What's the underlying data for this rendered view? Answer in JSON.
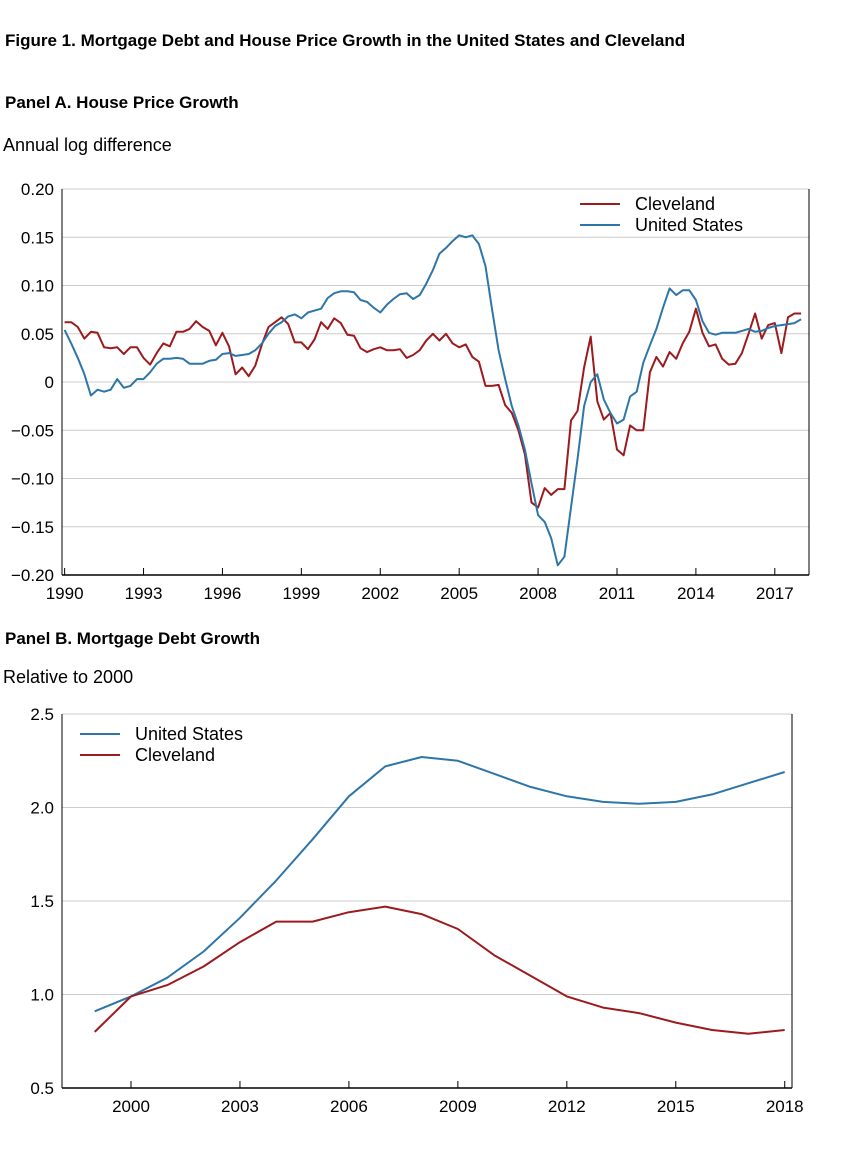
{
  "figure_title": "Figure 1. Mortgage Debt and House Price Growth in the United States and Cleveland",
  "panel_a": {
    "title": "Panel A. House Price Growth",
    "subtitle": "Annual log difference"
  },
  "panel_b": {
    "title": "Panel B. Mortgage Debt Growth",
    "subtitle": "Relative to 2000"
  },
  "colors": {
    "cleveland": "#9B1B1E",
    "united_states": "#2E76A8",
    "grid": "#CCCCCC",
    "axis": "#000000"
  },
  "chart_data": [
    {
      "type": "line",
      "title": "Panel A. House Price Growth",
      "ylabel": "Annual log difference",
      "xlim": [
        1990,
        2018
      ],
      "ylim": [
        -0.2,
        0.2
      ],
      "yticks": [
        0.2,
        0.15,
        0.1,
        0.05,
        0,
        -0.05,
        -0.1,
        -0.15,
        -0.2
      ],
      "ytick_labels": [
        "0.20",
        "0.15",
        "0.10",
        "0.05",
        "0",
        "−0.05",
        "−0.10",
        "−0.15",
        "−0.20"
      ],
      "xticks": [
        1990,
        1993,
        1996,
        1999,
        2002,
        2005,
        2008,
        2011,
        2014,
        2017
      ],
      "xtick_labels": [
        "1990",
        "1993",
        "1996",
        "1999",
        "2002",
        "2005",
        "2008",
        "2011",
        "2014",
        "2017"
      ],
      "grid": true,
      "legend": "top-right",
      "series": [
        {
          "name": "Cleveland",
          "color": "#9B1B1E",
          "x": [
            1990.0,
            1990.25,
            1990.5,
            1990.75,
            1991.0,
            1991.25,
            1991.5,
            1991.75,
            1992.0,
            1992.25,
            1992.5,
            1992.75,
            1993.0,
            1993.25,
            1993.5,
            1993.75,
            1994.0,
            1994.25,
            1994.5,
            1994.75,
            1995.0,
            1995.25,
            1995.5,
            1995.75,
            1996.0,
            1996.25,
            1996.5,
            1996.75,
            1997.0,
            1997.25,
            1997.5,
            1997.75,
            1998.0,
            1998.25,
            1998.5,
            1998.75,
            1999.0,
            1999.25,
            1999.5,
            1999.75,
            2000.0,
            2000.25,
            2000.5,
            2000.75,
            2001.0,
            2001.25,
            2001.5,
            2001.75,
            2002.0,
            2002.25,
            2002.5,
            2002.75,
            2003.0,
            2003.25,
            2003.5,
            2003.75,
            2004.0,
            2004.25,
            2004.5,
            2004.75,
            2005.0,
            2005.25,
            2005.5,
            2005.75,
            2006.0,
            2006.25,
            2006.5,
            2006.75,
            2007.0,
            2007.25,
            2007.5,
            2007.75,
            2008.0,
            2008.25,
            2008.5,
            2008.75,
            2009.0,
            2009.25,
            2009.5,
            2009.75,
            2010.0,
            2010.25,
            2010.5,
            2010.75,
            2011.0,
            2011.25,
            2011.5,
            2011.75,
            2012.0,
            2012.25,
            2012.5,
            2012.75,
            2013.0,
            2013.25,
            2013.5,
            2013.75,
            2014.0,
            2014.25,
            2014.5,
            2014.75,
            2015.0,
            2015.25,
            2015.5,
            2015.75,
            2016.0,
            2016.25,
            2016.5,
            2016.75,
            2017.0,
            2017.25,
            2017.5,
            2017.75,
            2018.0
          ],
          "y": [
            0.062,
            0.062,
            0.057,
            0.045,
            0.052,
            0.051,
            0.036,
            0.035,
            0.036,
            0.029,
            0.036,
            0.036,
            0.025,
            0.018,
            0.03,
            0.04,
            0.037,
            0.052,
            0.052,
            0.055,
            0.063,
            0.057,
            0.053,
            0.038,
            0.051,
            0.037,
            0.008,
            0.015,
            0.006,
            0.017,
            0.039,
            0.057,
            0.062,
            0.067,
            0.06,
            0.041,
            0.041,
            0.034,
            0.044,
            0.062,
            0.055,
            0.066,
            0.061,
            0.049,
            0.048,
            0.035,
            0.031,
            0.034,
            0.036,
            0.033,
            0.033,
            0.034,
            0.025,
            0.028,
            0.033,
            0.043,
            0.05,
            0.043,
            0.05,
            0.04,
            0.036,
            0.039,
            0.026,
            0.021,
            -0.004,
            -0.004,
            -0.003,
            -0.024,
            -0.032,
            -0.05,
            -0.075,
            -0.125,
            -0.13,
            -0.11,
            -0.117,
            -0.111,
            -0.111,
            -0.04,
            -0.03,
            0.015,
            0.047,
            -0.02,
            -0.039,
            -0.032,
            -0.07,
            -0.076,
            -0.045,
            -0.05,
            -0.05,
            0.01,
            0.026,
            0.016,
            0.031,
            0.024,
            0.04,
            0.052,
            0.076,
            0.051,
            0.037,
            0.039,
            0.024,
            0.018,
            0.019,
            0.03,
            0.05,
            0.071,
            0.045,
            0.059,
            0.061,
            0.03,
            0.067,
            0.071,
            0.071
          ]
        },
        {
          "name": "United States",
          "color": "#2E76A8",
          "x": [
            1990.0,
            1990.25,
            1990.5,
            1990.75,
            1991.0,
            1991.25,
            1991.5,
            1991.75,
            1992.0,
            1992.25,
            1992.5,
            1992.75,
            1993.0,
            1993.25,
            1993.5,
            1993.75,
            1994.0,
            1994.25,
            1994.5,
            1994.75,
            1995.0,
            1995.25,
            1995.5,
            1995.75,
            1996.0,
            1996.25,
            1996.5,
            1996.75,
            1997.0,
            1997.25,
            1997.5,
            1997.75,
            1998.0,
            1998.25,
            1998.5,
            1998.75,
            1999.0,
            1999.25,
            1999.5,
            1999.75,
            2000.0,
            2000.25,
            2000.5,
            2000.75,
            2001.0,
            2001.25,
            2001.5,
            2001.75,
            2002.0,
            2002.25,
            2002.5,
            2002.75,
            2003.0,
            2003.25,
            2003.5,
            2003.75,
            2004.0,
            2004.25,
            2004.5,
            2004.75,
            2005.0,
            2005.25,
            2005.5,
            2005.75,
            2006.0,
            2006.25,
            2006.5,
            2006.75,
            2007.0,
            2007.25,
            2007.5,
            2007.75,
            2008.0,
            2008.25,
            2008.5,
            2008.75,
            2009.0,
            2009.25,
            2009.5,
            2009.75,
            2010.0,
            2010.25,
            2010.5,
            2010.75,
            2011.0,
            2011.25,
            2011.5,
            2011.75,
            2012.0,
            2012.25,
            2012.5,
            2012.75,
            2013.0,
            2013.25,
            2013.5,
            2013.75,
            2014.0,
            2014.25,
            2014.5,
            2014.75,
            2015.0,
            2015.25,
            2015.5,
            2015.75,
            2016.0,
            2016.25,
            2016.5,
            2016.75,
            2017.0,
            2017.25,
            2017.5,
            2017.75,
            2018.0
          ],
          "y": [
            0.054,
            0.04,
            0.025,
            0.008,
            -0.014,
            -0.008,
            -0.01,
            -0.008,
            0.003,
            -0.006,
            -0.004,
            0.003,
            0.003,
            0.01,
            0.019,
            0.024,
            0.024,
            0.025,
            0.024,
            0.019,
            0.019,
            0.019,
            0.022,
            0.023,
            0.029,
            0.03,
            0.027,
            0.028,
            0.029,
            0.033,
            0.04,
            0.05,
            0.058,
            0.062,
            0.068,
            0.07,
            0.066,
            0.072,
            0.074,
            0.076,
            0.087,
            0.092,
            0.094,
            0.094,
            0.093,
            0.085,
            0.083,
            0.077,
            0.072,
            0.08,
            0.086,
            0.091,
            0.092,
            0.086,
            0.09,
            0.102,
            0.116,
            0.133,
            0.139,
            0.146,
            0.152,
            0.15,
            0.152,
            0.143,
            0.12,
            0.075,
            0.033,
            0.003,
            -0.025,
            -0.045,
            -0.07,
            -0.105,
            -0.138,
            -0.145,
            -0.162,
            -0.19,
            -0.181,
            -0.13,
            -0.08,
            -0.025,
            0.0,
            0.008,
            -0.018,
            -0.032,
            -0.043,
            -0.039,
            -0.015,
            -0.01,
            0.02,
            0.038,
            0.055,
            0.077,
            0.097,
            0.09,
            0.095,
            0.095,
            0.085,
            0.063,
            0.051,
            0.049,
            0.051,
            0.051,
            0.051,
            0.053,
            0.055,
            0.052,
            0.053,
            0.056,
            0.058,
            0.059,
            0.06,
            0.061,
            0.065
          ]
        }
      ]
    },
    {
      "type": "line",
      "title": "Panel B. Mortgage Debt Growth",
      "ylabel": "Relative to 2000",
      "xlim": [
        1999,
        2018
      ],
      "ylim": [
        0.5,
        2.5
      ],
      "yticks": [
        2.5,
        2.0,
        1.5,
        1.0,
        0.5
      ],
      "ytick_labels": [
        "2.5",
        "2.0",
        "1.5",
        "1.0",
        "0.5"
      ],
      "xticks": [
        2000,
        2003,
        2006,
        2009,
        2012,
        2015,
        2018
      ],
      "xtick_labels": [
        "2000",
        "2003",
        "2006",
        "2009",
        "2012",
        "2015",
        "2018"
      ],
      "grid": true,
      "legend": "top-left",
      "series": [
        {
          "name": "United States",
          "color": "#2E76A8",
          "x": [
            1999,
            2000,
            2001,
            2002,
            2003,
            2004,
            2005,
            2006,
            2007,
            2008,
            2009,
            2010,
            2011,
            2012,
            2013,
            2014,
            2015,
            2016,
            2017,
            2018
          ],
          "y": [
            0.91,
            0.99,
            1.09,
            1.23,
            1.41,
            1.61,
            1.83,
            2.06,
            2.22,
            2.27,
            2.25,
            2.18,
            2.11,
            2.06,
            2.03,
            2.02,
            2.03,
            2.07,
            2.13,
            2.19
          ]
        },
        {
          "name": "Cleveland",
          "color": "#9B1B1E",
          "x": [
            1999,
            2000,
            2001,
            2002,
            2003,
            2004,
            2005,
            2006,
            2007,
            2008,
            2009,
            2010,
            2011,
            2012,
            2013,
            2014,
            2015,
            2016,
            2017,
            2018
          ],
          "y": [
            0.8,
            0.99,
            1.05,
            1.15,
            1.28,
            1.39,
            1.39,
            1.44,
            1.47,
            1.43,
            1.35,
            1.21,
            1.1,
            0.99,
            0.93,
            0.9,
            0.85,
            0.81,
            0.79,
            0.81
          ]
        }
      ]
    }
  ]
}
